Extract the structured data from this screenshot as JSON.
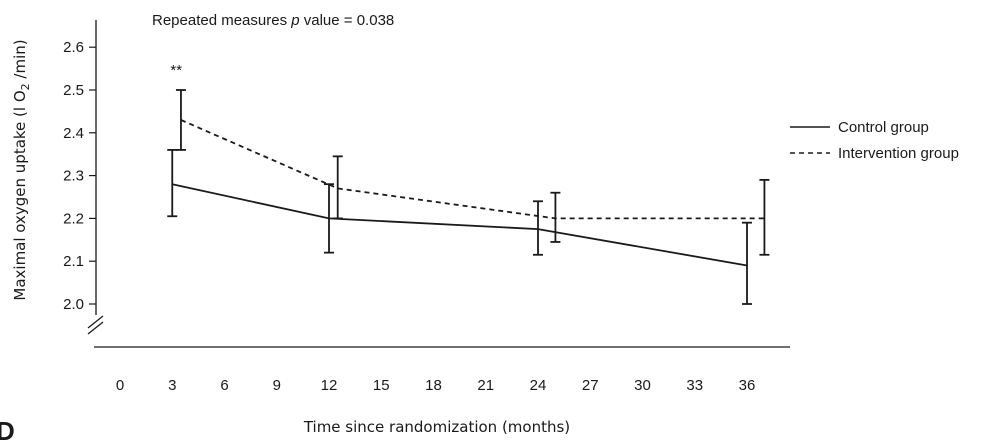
{
  "chart_data": {
    "type": "line",
    "title_prefix": "Repeated measures ",
    "title_italic": "p",
    "title_suffix": " value = 0.038",
    "xlabel": "Time since randomization (months)",
    "ylabel_pre": "Maximal oxygen uptake (l O",
    "ylabel_sub": "2",
    "ylabel_post": " /min)",
    "xlim": [
      0,
      36
    ],
    "ylim": [
      2.0,
      2.6
    ],
    "x_ticks": [
      "0",
      "3",
      "6",
      "9",
      "12",
      "15",
      "18",
      "21",
      "24",
      "27",
      "30",
      "33",
      "36"
    ],
    "y_ticks": [
      "2.0",
      "2.1",
      "2.2",
      "2.3",
      "2.4",
      "2.5",
      "2.6"
    ],
    "annotation": "**",
    "annotation_x": 3,
    "panel_label": "D",
    "series": [
      {
        "name": "Control group",
        "style": "solid",
        "points": [
          {
            "x": 3,
            "y": 2.28,
            "lo": 2.205,
            "hi": 2.36
          },
          {
            "x": 12,
            "y": 2.2,
            "lo": 2.12,
            "hi": 2.28
          },
          {
            "x": 24,
            "y": 2.175,
            "lo": 2.115,
            "hi": 2.24
          },
          {
            "x": 36,
            "y": 2.09,
            "lo": 2.0,
            "hi": 2.19
          }
        ]
      },
      {
        "name": "Intervention group",
        "style": "dashed",
        "points": [
          {
            "x": 3.5,
            "y": 2.43,
            "lo": 2.36,
            "hi": 2.5
          },
          {
            "x": 12.5,
            "y": 2.27,
            "lo": 2.2,
            "hi": 2.345
          },
          {
            "x": 25,
            "y": 2.2,
            "lo": 2.145,
            "hi": 2.26
          },
          {
            "x": 37,
            "y": 2.2,
            "lo": 2.115,
            "hi": 2.29
          }
        ]
      }
    ]
  }
}
